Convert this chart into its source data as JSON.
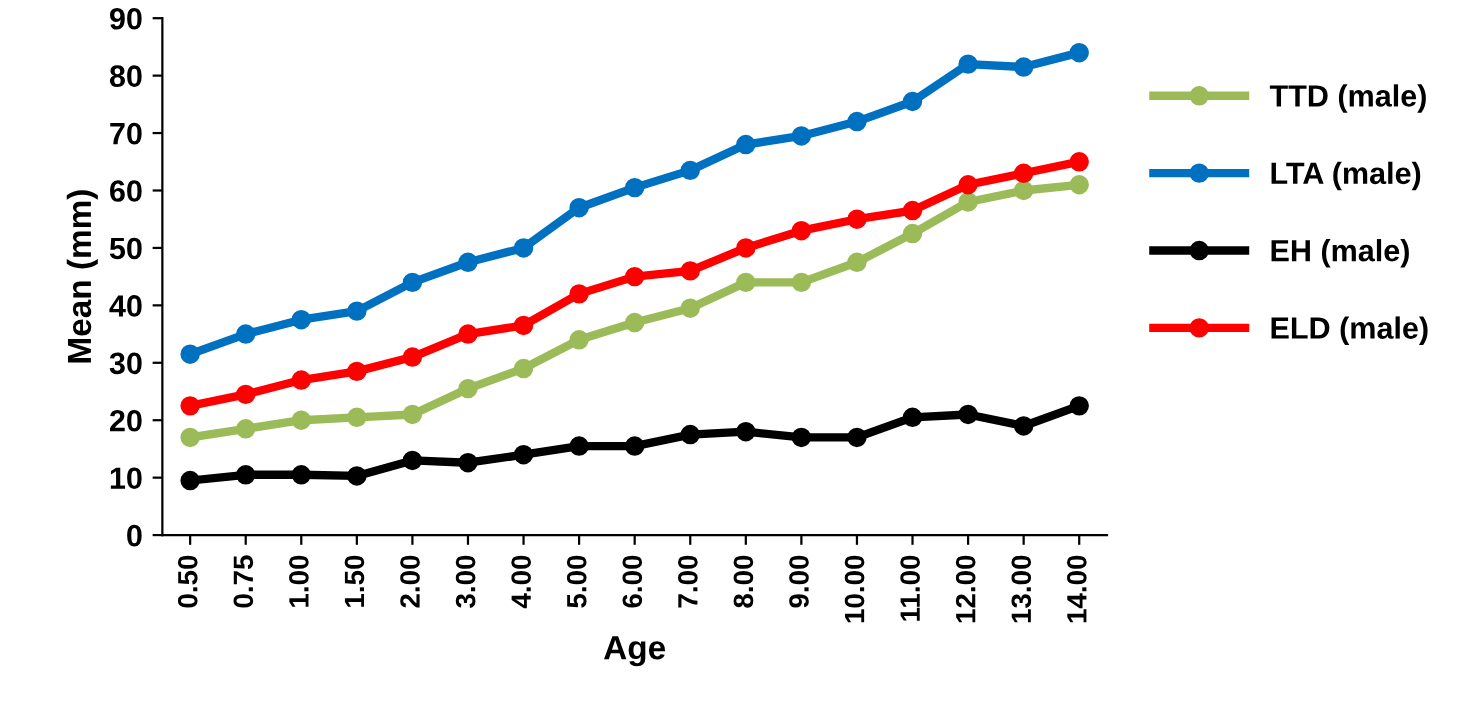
{
  "chart_data": {
    "type": "line",
    "xlabel": "Age",
    "ylabel": "Mean (mm)",
    "categories": [
      "0.50",
      "0.75",
      "1.00",
      "1.50",
      "2.00",
      "3.00",
      "4.00",
      "5.00",
      "6.00",
      "7.00",
      "8.00",
      "9.00",
      "10.00",
      "11.00",
      "12.00",
      "13.00",
      "14.00"
    ],
    "series": [
      {
        "name": "TTD (male)",
        "color": "#9bbb59",
        "values": [
          17,
          18.5,
          20,
          20.5,
          21,
          25.5,
          29,
          34,
          37,
          39.5,
          44,
          44,
          47.5,
          52.5,
          58,
          60,
          61
        ]
      },
      {
        "name": "LTA (male)",
        "color": "#0070c0",
        "values": [
          31.5,
          35,
          37.5,
          39,
          44,
          47.5,
          50,
          57,
          60.5,
          63.5,
          68,
          69.5,
          72,
          75.5,
          82,
          81.5,
          84
        ]
      },
      {
        "name": "EH (male)",
        "color": "#000000",
        "values": [
          9.5,
          10.5,
          10.5,
          10.3,
          13,
          12.6,
          14,
          15.5,
          15.5,
          17.5,
          18,
          17,
          17,
          20.5,
          21,
          19,
          22.5
        ]
      },
      {
        "name": "ELD (male)",
        "color": "#ff0000",
        "values": [
          22.5,
          24.5,
          27,
          28.5,
          31,
          35,
          36.5,
          42,
          45,
          46,
          50,
          53,
          55,
          56.5,
          61,
          63,
          65
        ]
      }
    ],
    "ylim": [
      0,
      90
    ],
    "yticks": [
      0,
      10,
      20,
      30,
      40,
      50,
      60,
      70,
      80,
      90
    ],
    "grid": false,
    "legend": "right",
    "marker": "circle",
    "line_style": "solid"
  }
}
